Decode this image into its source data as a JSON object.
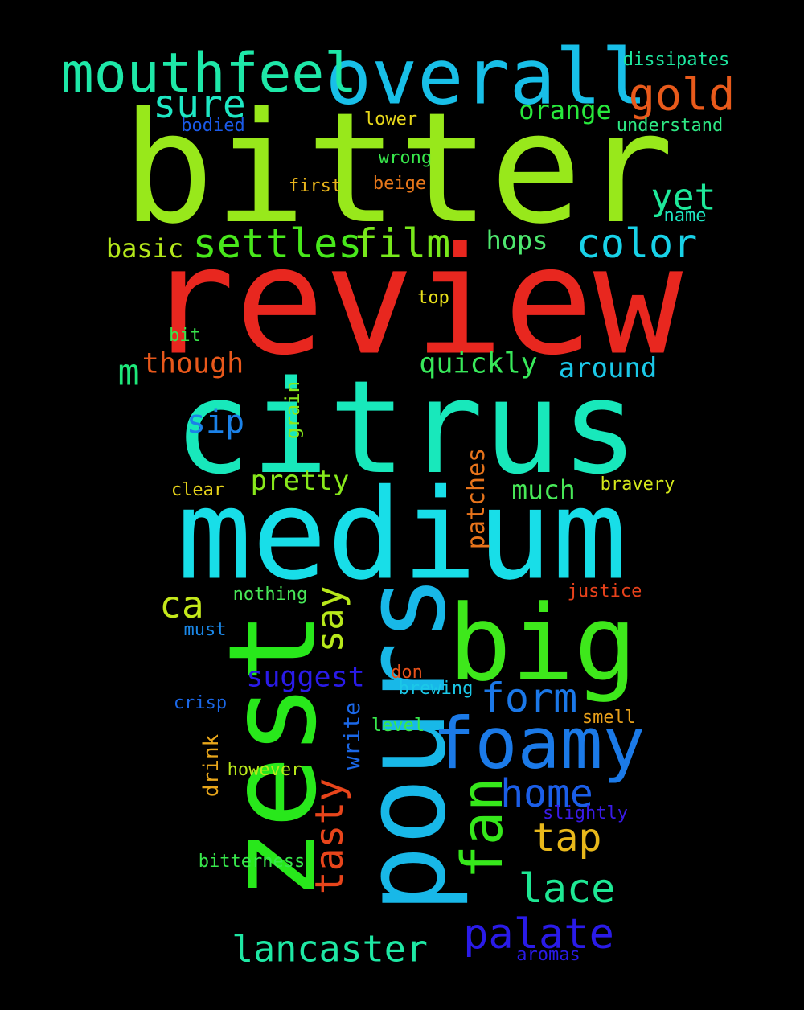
{
  "words": [
    {
      "id": "bitter",
      "text": "bitter",
      "color": "#98e81b",
      "vertical": false
    },
    {
      "id": "review",
      "text": "review",
      "color": "#e8271f",
      "vertical": false
    },
    {
      "id": "citrus",
      "text": "citrus",
      "color": "#18e8bb",
      "vertical": false
    },
    {
      "id": "medium",
      "text": "medium",
      "color": "#18dee8",
      "vertical": false
    },
    {
      "id": "zest",
      "text": "zest",
      "color": "#28e81b",
      "vertical": true
    },
    {
      "id": "pours",
      "text": "pours",
      "color": "#18b8e8",
      "vertical": true
    },
    {
      "id": "big",
      "text": "big",
      "color": "#3ee81b",
      "vertical": false
    },
    {
      "id": "overall",
      "text": "overall",
      "color": "#18bfe8",
      "vertical": false
    },
    {
      "id": "mouthfeel",
      "text": "mouthfeel",
      "color": "#1ee8a8",
      "vertical": false
    },
    {
      "id": "foamy",
      "text": "foamy",
      "color": "#1b7ae8",
      "vertical": false
    },
    {
      "id": "fan",
      "text": "fan",
      "color": "#36e81b",
      "vertical": true
    },
    {
      "id": "settles",
      "text": "settles",
      "color": "#48e81b",
      "vertical": false
    },
    {
      "id": "film",
      "text": "film",
      "color": "#78e81b",
      "vertical": false
    },
    {
      "id": "gold",
      "text": "gold",
      "color": "#e85a1b",
      "vertical": false
    },
    {
      "id": "color",
      "text": "color",
      "color": "#18d2e8",
      "vertical": false
    },
    {
      "id": "yet",
      "text": "yet",
      "color": "#1ee89a",
      "vertical": false
    },
    {
      "id": "sure",
      "text": "sure",
      "color": "#1ee8c4",
      "vertical": false
    },
    {
      "id": "palate",
      "text": "palate",
      "color": "#2a1be8",
      "vertical": false
    },
    {
      "id": "lancaster",
      "text": "lancaster",
      "color": "#1ee8a4",
      "vertical": false
    },
    {
      "id": "form",
      "text": "form",
      "color": "#1b78e8",
      "vertical": false
    },
    {
      "id": "home",
      "text": "home",
      "color": "#1b5ee8",
      "vertical": false
    },
    {
      "id": "lace",
      "text": "lace",
      "color": "#1ee894",
      "vertical": false
    },
    {
      "id": "tap",
      "text": "tap",
      "color": "#e8b81b",
      "vertical": false
    },
    {
      "id": "tasty",
      "text": "tasty",
      "color": "#e8451b",
      "vertical": true
    },
    {
      "id": "say",
      "text": "say",
      "color": "#b8e81b",
      "vertical": true
    },
    {
      "id": "ca",
      "text": "ca",
      "color": "#c4e81b",
      "vertical": false
    },
    {
      "id": "sip",
      "text": "sip",
      "color": "#1b82e8",
      "vertical": false
    },
    {
      "id": "m",
      "text": "m",
      "color": "#1ee87a",
      "vertical": false
    },
    {
      "id": "though",
      "text": "though",
      "color": "#e8581b",
      "vertical": false
    },
    {
      "id": "quickly",
      "text": "quickly",
      "color": "#38e85a",
      "vertical": false
    },
    {
      "id": "around",
      "text": "around",
      "color": "#1bc8e8",
      "vertical": false
    },
    {
      "id": "hops",
      "text": "hops",
      "color": "#4ee86e",
      "vertical": false
    },
    {
      "id": "orange",
      "text": "orange",
      "color": "#28e83c",
      "vertical": false
    },
    {
      "id": "basic",
      "text": "basic",
      "color": "#b4e81b",
      "vertical": false
    },
    {
      "id": "suggest",
      "text": "suggest",
      "color": "#2a1be8",
      "vertical": false
    },
    {
      "id": "pretty",
      "text": "pretty",
      "color": "#88e81b",
      "vertical": false
    },
    {
      "id": "much",
      "text": "much",
      "color": "#48e858",
      "vertical": false
    },
    {
      "id": "patches",
      "text": "patches",
      "color": "#e8741b",
      "vertical": true
    },
    {
      "id": "write",
      "text": "write",
      "color": "#1b68e8",
      "vertical": true
    },
    {
      "id": "drink",
      "text": "drink",
      "color": "#e8a61b",
      "vertical": true
    },
    {
      "id": "grain",
      "text": "grain",
      "color": "#88e81b",
      "vertical": true
    },
    {
      "id": "dissipates",
      "text": "dissipates",
      "color": "#1ee8a0",
      "vertical": false
    },
    {
      "id": "bodied",
      "text": "bodied",
      "color": "#1b5ae8",
      "vertical": false
    },
    {
      "id": "lower",
      "text": "lower",
      "color": "#e8d81b",
      "vertical": false
    },
    {
      "id": "understand",
      "text": "understand",
      "color": "#2ee884",
      "vertical": false
    },
    {
      "id": "wrong",
      "text": "wrong",
      "color": "#38e84c",
      "vertical": false
    },
    {
      "id": "first",
      "text": "first",
      "color": "#e8b41b",
      "vertical": false
    },
    {
      "id": "beige",
      "text": "beige",
      "color": "#e8781b",
      "vertical": false
    },
    {
      "id": "name",
      "text": "name",
      "color": "#1ee8c4",
      "vertical": false
    },
    {
      "id": "top",
      "text": "top",
      "color": "#e8e01b",
      "vertical": false
    },
    {
      "id": "bit",
      "text": "bit",
      "color": "#38e84c",
      "vertical": false
    },
    {
      "id": "clear",
      "text": "clear",
      "color": "#e8d41b",
      "vertical": false
    },
    {
      "id": "bravery",
      "text": "bravery",
      "color": "#d4e81b",
      "vertical": false
    },
    {
      "id": "nothing",
      "text": "nothing",
      "color": "#48e858",
      "vertical": false
    },
    {
      "id": "justice",
      "text": "justice",
      "color": "#e8421b",
      "vertical": false
    },
    {
      "id": "must",
      "text": "must",
      "color": "#1b88e8",
      "vertical": false
    },
    {
      "id": "don",
      "text": "don",
      "color": "#e8521b",
      "vertical": false
    },
    {
      "id": "brewing",
      "text": "brewing",
      "color": "#1bc8e8",
      "vertical": false
    },
    {
      "id": "crisp",
      "text": "crisp",
      "color": "#1b68e8",
      "vertical": false
    },
    {
      "id": "smell",
      "text": "smell",
      "color": "#e8a01b",
      "vertical": false
    },
    {
      "id": "level",
      "text": "level",
      "color": "#38e84c",
      "vertical": false
    },
    {
      "id": "however",
      "text": "however",
      "color": "#b8e81b",
      "vertical": false
    },
    {
      "id": "slightly",
      "text": "slightly",
      "color": "#3a1be8",
      "vertical": false
    },
    {
      "id": "bitterness",
      "text": "bitterness",
      "color": "#38e84c",
      "vertical": false
    },
    {
      "id": "aromas",
      "text": "aromas",
      "color": "#2a1be8",
      "vertical": false
    }
  ]
}
